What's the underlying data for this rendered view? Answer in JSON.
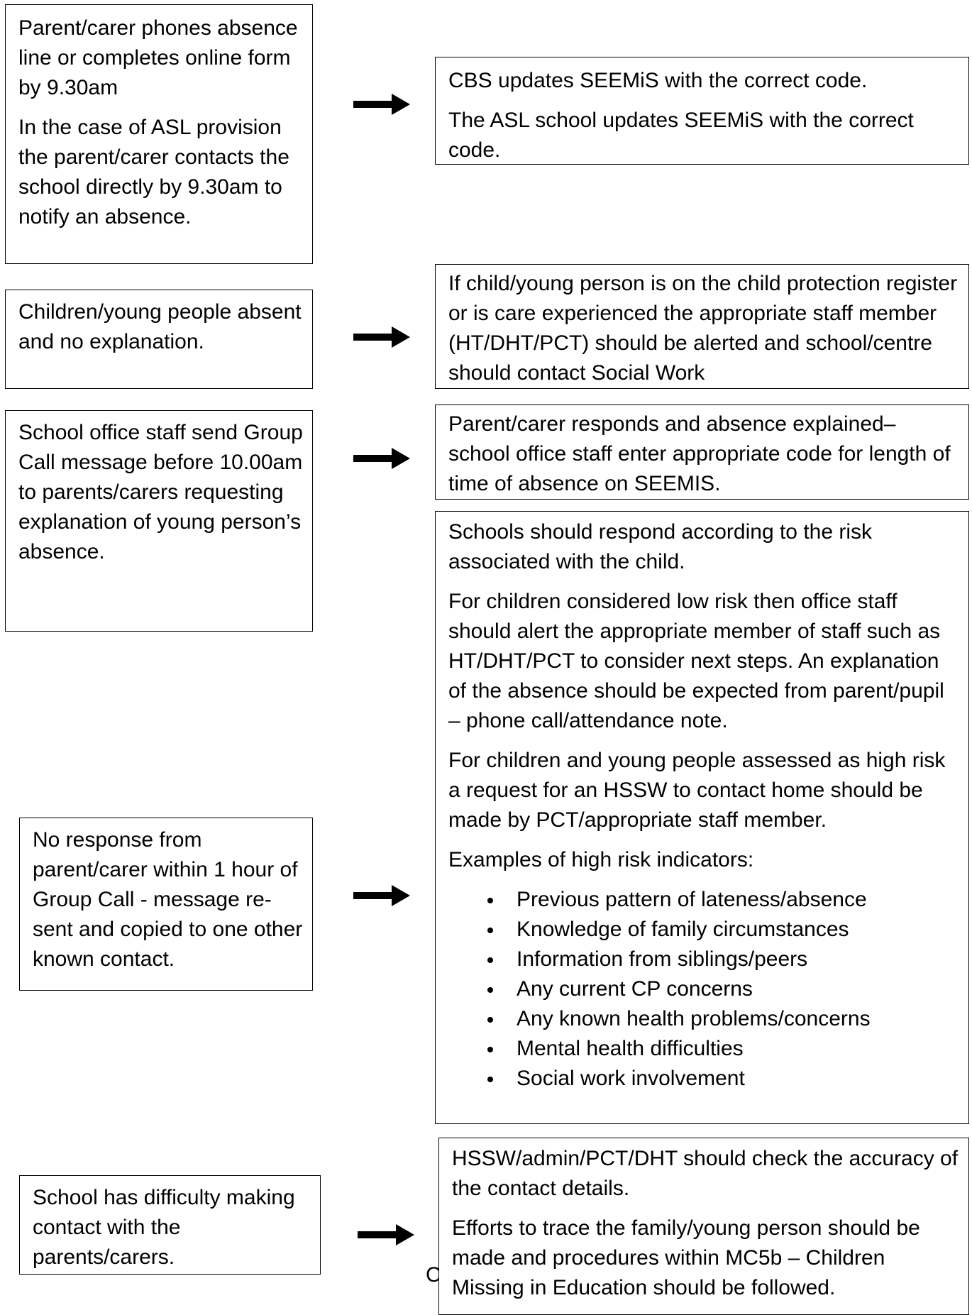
{
  "flow": [
    {
      "left": [
        "Parent/carer phones absence line or completes online form by 9.30am",
        "In the case of ASL provision the parent/carer contacts the school directly by 9.30am to notify an absence."
      ],
      "right": [
        "CBS updates SEEMiS with the correct code.",
        "The ASL school updates SEEMiS with the correct code."
      ]
    },
    {
      "left": [
        "Children/young people absent and no explanation."
      ],
      "right": [
        "If child/young person is on the child protection register or is care experienced the appropriate staff member (HT/DHT/PCT) should be alerted and school/centre should contact Social Work"
      ]
    },
    {
      "left": [
        "School office staff send Group Call message before 10.00am to parents/carers requesting explanation of young person’s absence."
      ],
      "right": [
        "Parent/carer responds and absence explained– school office staff enter appropriate code for length of time of absence on SEEMIS."
      ]
    },
    {
      "left": [
        "No response from parent/carer within 1 hour of Group Call - message re-sent and copied to one other known contact."
      ],
      "right": [
        "Schools should respond according to the risk associated with the child.",
        "For children considered low risk then office staff should alert the appropriate member of staff such as HT/DHT/PCT to consider next steps. An explanation of the absence should be expected from parent/pupil – phone call/attendance note.",
        "For children and young people assessed as high risk a request for an HSSW to contact home should be made by PCT/appropriate staff member.",
        "Examples of high risk indicators:"
      ],
      "right_bullets": [
        "Previous pattern of lateness/absence",
        "Knowledge of family circumstances",
        "Information from siblings/peers",
        "Any current CP concerns",
        "Any known health problems/concerns",
        "Mental health difficulties",
        "Social work involvement"
      ]
    },
    {
      "left": [
        "School has difficulty making contact with the parents/carers."
      ],
      "right": [
        "HSSW/admin/PCT/DHT should check the accuracy of the contact details.",
        "Efforts to trace the family/young person should be made and procedures within MC5b – Children Missing in Education should be followed."
      ]
    }
  ],
  "stray_glyph": "C"
}
